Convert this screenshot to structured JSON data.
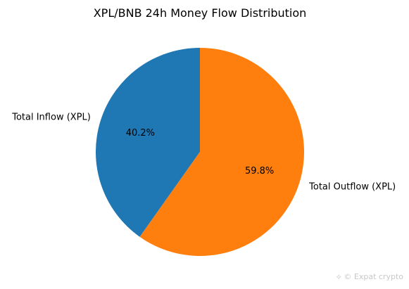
{
  "chart_data": {
    "type": "pie",
    "title": "XPL/BNB 24h Money Flow Distribution",
    "categories": [
      "Total Inflow (XPL)",
      "Total Outflow (XPL)"
    ],
    "values": [
      40.2,
      59.8
    ],
    "percent_labels": [
      "40.2%",
      "59.8%"
    ],
    "colors": [
      "#1f77b4",
      "#ff7f0e"
    ],
    "start_angle_deg": 90,
    "direction": "counterclockwise"
  },
  "watermark": {
    "text": "© Expat crypto",
    "icon": "swirl-icon"
  }
}
